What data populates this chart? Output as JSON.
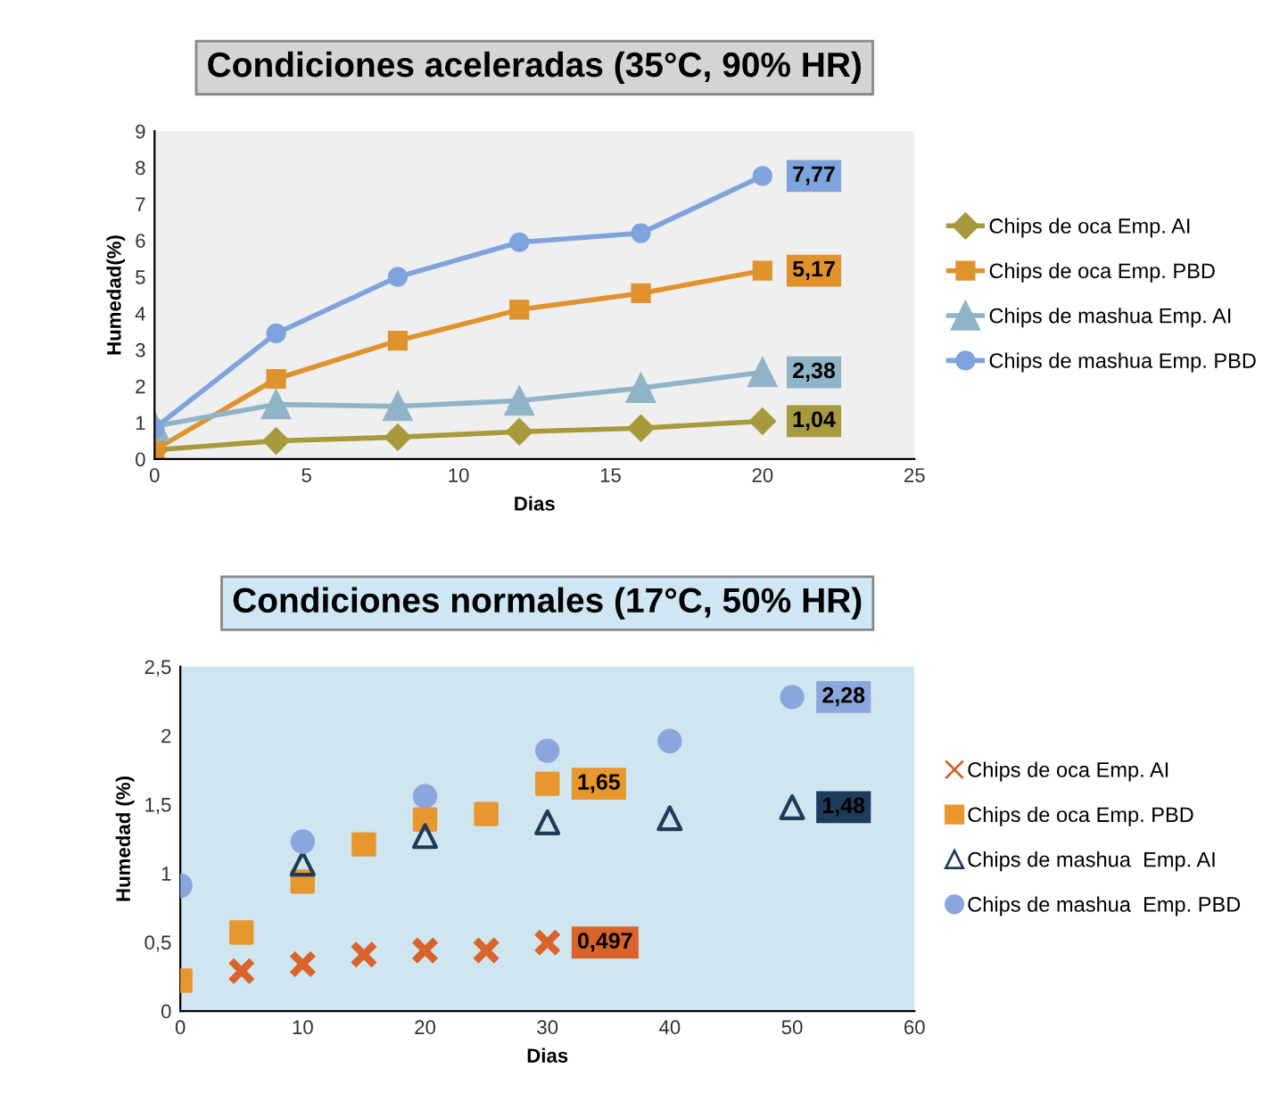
{
  "chart_data": [
    {
      "type": "line",
      "title": "Condiciones aceleradas (35°C, 90% HR)",
      "xlabel": "Dias",
      "ylabel": "Humedad(%)",
      "xlim": [
        0,
        25
      ],
      "xticks": [
        0,
        5,
        10,
        15,
        20,
        25
      ],
      "ylim": [
        0,
        9
      ],
      "yticks": [
        0,
        1,
        2,
        3,
        4,
        5,
        6,
        7,
        8,
        9
      ],
      "grid": false,
      "legend": "right",
      "line_style": "solid",
      "series": [
        {
          "name": "Chips de oca Emp. AI",
          "color": "#a89a3c",
          "marker": "diamond",
          "x": [
            0,
            4,
            8,
            12,
            16,
            20
          ],
          "values": [
            0.25,
            0.5,
            0.6,
            0.75,
            0.85,
            1.04
          ],
          "value_labels": [
            null,
            null,
            null,
            null,
            null,
            "1,04"
          ]
        },
        {
          "name": "Chips de oca Emp. PBD",
          "color": "#e0922e",
          "marker": "square",
          "x": [
            0,
            4,
            8,
            12,
            16,
            20
          ],
          "values": [
            0.25,
            2.2,
            3.25,
            4.1,
            4.55,
            5.17
          ],
          "value_labels": [
            null,
            null,
            null,
            null,
            null,
            "5,17"
          ]
        },
        {
          "name": "Chips de mashua Emp. AI",
          "color": "#8fb4c8",
          "marker": "triangle",
          "x": [
            0,
            4,
            8,
            12,
            16,
            20
          ],
          "values": [
            0.9,
            1.5,
            1.45,
            1.6,
            1.95,
            2.38
          ],
          "value_labels": [
            null,
            null,
            null,
            null,
            null,
            "2,38"
          ]
        },
        {
          "name": "Chips de mashua Emp. PBD",
          "color": "#7fa3dc",
          "marker": "circle",
          "x": [
            0,
            4,
            8,
            12,
            16,
            20
          ],
          "values": [
            0.85,
            3.45,
            5.0,
            5.95,
            6.2,
            7.77
          ],
          "value_labels": [
            null,
            null,
            null,
            null,
            null,
            "7,77"
          ]
        }
      ]
    },
    {
      "type": "scatter",
      "title": "Condiciones normales (17°C, 50% HR)",
      "xlabel": "Dias",
      "ylabel": "Humedad (%)",
      "xlim": [
        0,
        60
      ],
      "xticks": [
        0,
        10,
        20,
        30,
        40,
        50,
        60
      ],
      "ylim": [
        0,
        2.5
      ],
      "yticks": [
        0,
        {
          "value": 0.5,
          "label": "0,5"
        },
        1,
        {
          "value": 1.5,
          "label": "1,5"
        },
        2,
        {
          "value": 2.5,
          "label": "2,5"
        }
      ],
      "grid": false,
      "legend": "right",
      "series": [
        {
          "name": "Chips de oca Emp. AI",
          "color": "#d9632a",
          "marker": "cross",
          "x": [
            5,
            10,
            15,
            20,
            25,
            30
          ],
          "values": [
            0.29,
            0.34,
            0.41,
            0.44,
            0.44,
            0.497
          ],
          "value_labels": [
            null,
            null,
            null,
            null,
            null,
            "0,497"
          ]
        },
        {
          "name": "Chips de oca Emp. PBD",
          "color": "#e8962e",
          "marker": "square",
          "x": [
            0,
            5,
            10,
            15,
            20,
            25,
            30
          ],
          "values": [
            0.22,
            0.57,
            0.94,
            1.21,
            1.39,
            1.43,
            1.65
          ],
          "value_labels": [
            null,
            null,
            null,
            null,
            null,
            null,
            "1,65"
          ]
        },
        {
          "name": "Chips de mashua  Emp. AI",
          "color": "#1f3b5c",
          "marker": "triangle",
          "x": [
            10,
            20,
            30,
            40,
            50
          ],
          "values": [
            1.07,
            1.27,
            1.37,
            1.4,
            1.48
          ],
          "value_labels": [
            null,
            null,
            null,
            null,
            "1,48"
          ]
        },
        {
          "name": "Chips de mashua  Emp. PBD",
          "color": "#8aa6dc",
          "marker": "circle",
          "x": [
            0,
            10,
            20,
            30,
            40,
            50
          ],
          "values": [
            0.91,
            1.23,
            1.56,
            1.89,
            1.96,
            2.28
          ],
          "value_labels": [
            null,
            null,
            null,
            null,
            null,
            "2,28"
          ]
        }
      ]
    }
  ]
}
